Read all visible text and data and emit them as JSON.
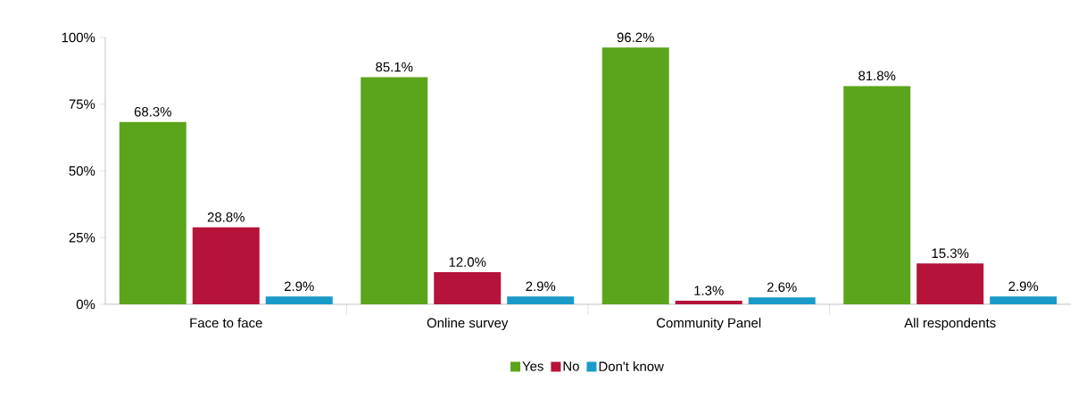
{
  "chart_data": {
    "type": "bar",
    "categories": [
      "Face to face",
      "Online survey",
      "Community Panel",
      "All respondents"
    ],
    "series": [
      {
        "name": "Yes",
        "color": "#5aa51c",
        "values": [
          68.3,
          85.1,
          96.2,
          81.8
        ],
        "value_labels": [
          "68.3%",
          "85.1%",
          "96.2%",
          "81.8%"
        ]
      },
      {
        "name": "No",
        "color": "#b5133a",
        "values": [
          28.8,
          12.0,
          1.3,
          15.3
        ],
        "value_labels": [
          "28.8%",
          "12.0%",
          "1.3%",
          "15.3%"
        ]
      },
      {
        "name": "Don't know",
        "color": "#1a9ac9",
        "values": [
          2.9,
          2.9,
          2.6,
          2.9
        ],
        "value_labels": [
          "2.9%",
          "2.9%",
          "2.6%",
          "2.9%"
        ]
      }
    ],
    "ylim": [
      0,
      100
    ],
    "yticks": [
      {
        "value": 0,
        "label": "0%"
      },
      {
        "value": 25,
        "label": "25%"
      },
      {
        "value": 50,
        "label": "50%"
      },
      {
        "value": 75,
        "label": "75%"
      },
      {
        "value": 100,
        "label": "100%"
      }
    ],
    "grid": false,
    "legend": "bottom"
  }
}
